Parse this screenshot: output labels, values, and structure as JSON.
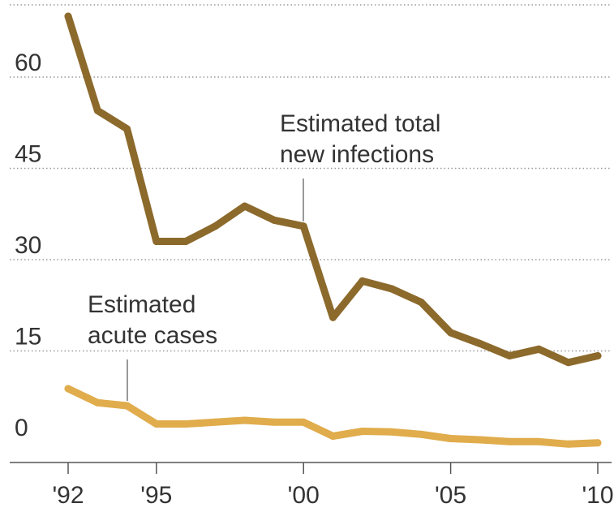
{
  "chart_data": {
    "type": "line",
    "title": "",
    "xlabel": "",
    "ylabel": "",
    "x": [
      1992,
      1993,
      1994,
      1995,
      1996,
      1997,
      1998,
      1999,
      2000,
      2001,
      2002,
      2003,
      2004,
      2005,
      2006,
      2007,
      2008,
      2009,
      2010
    ],
    "xlim": [
      1992,
      2010
    ],
    "ylim": [
      0,
      68
    ],
    "y_ticks": [
      0,
      15,
      30,
      45,
      60
    ],
    "y_tick_labels": [
      "0",
      "15",
      "30",
      "45",
      "60"
    ],
    "x_ticks": [
      1992,
      1995,
      2000,
      2005,
      2010
    ],
    "x_tick_labels": [
      "'92",
      "'95",
      "'00",
      "'05",
      "'10"
    ],
    "grid": true,
    "series": [
      {
        "name": "Estimated total new infections",
        "color": "#8c6a2c",
        "values": [
          70,
          54.5,
          51.5,
          33,
          33,
          35.5,
          38.8,
          36.5,
          35.5,
          20.5,
          26.5,
          25.2,
          23,
          18,
          16.2,
          14.2,
          15.3,
          13.1,
          14.2
        ]
      },
      {
        "name": "Estimated acute cases",
        "color": "#e0ac4c",
        "values": [
          8.8,
          6.5,
          6,
          3,
          3,
          3.3,
          3.6,
          3.3,
          3.3,
          1,
          1.8,
          1.7,
          1.3,
          0.6,
          0.4,
          0.1,
          0.1,
          -0.3,
          -0.1
        ]
      }
    ],
    "annotations": [
      {
        "lines": [
          "Estimated total",
          "new infections"
        ],
        "series": 0,
        "x": 2000
      },
      {
        "lines": [
          "Estimated",
          "acute cases"
        ],
        "series": 1,
        "x": 1994
      }
    ]
  }
}
